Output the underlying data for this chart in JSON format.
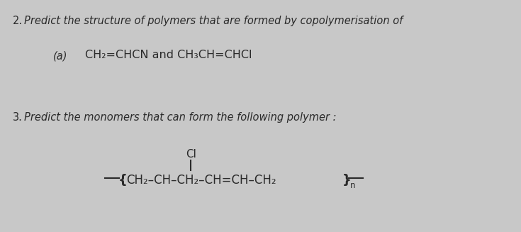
{
  "bg_color": "#c8c8c8",
  "text_color": "#2a2a2a",
  "fig_width": 7.35,
  "fig_height": 3.27,
  "dpi": 100,
  "q2_number": "2.",
  "q2_text": "Predict the structure of polymers that are formed by copolymerisation of",
  "q2a_label": "(a)",
  "q2a_formula": "CH₂=CHCN and CH₃CH=CHCl",
  "q3_number": "3.",
  "q3_text": "Predict the monomers that can form the following polymer :",
  "cl_label": "Cl",
  "polymer_left": "—{CH₂–CH–CH₂–CH=CH–CH₂}—",
  "n_label": "n"
}
